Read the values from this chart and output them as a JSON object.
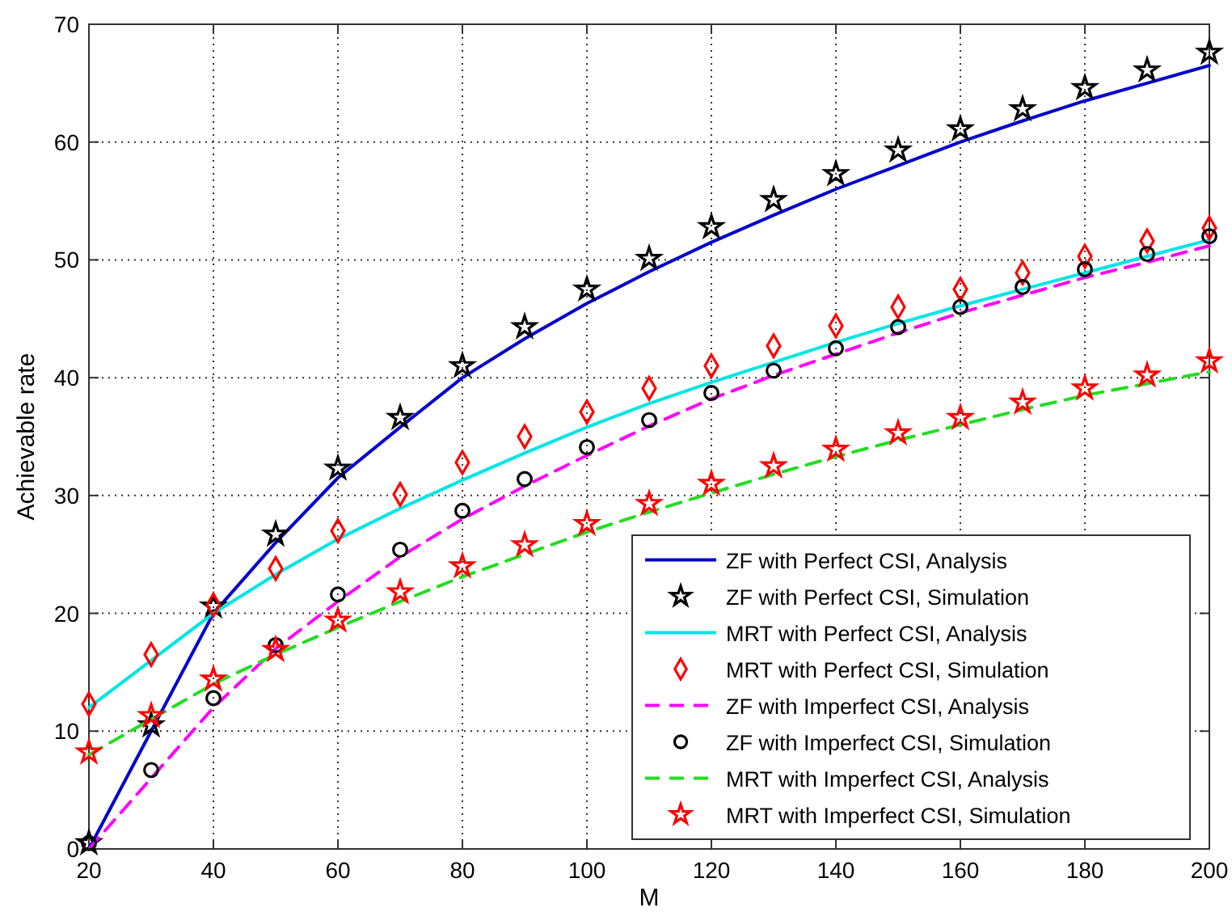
{
  "chart_data": {
    "type": "line",
    "xlabel": "M",
    "ylabel": "Achievable rate",
    "x": [
      20,
      30,
      40,
      50,
      60,
      70,
      80,
      90,
      100,
      110,
      120,
      130,
      140,
      150,
      160,
      170,
      180,
      190,
      200
    ],
    "xlim": [
      20,
      200
    ],
    "xticks": [
      20,
      40,
      60,
      80,
      100,
      120,
      140,
      160,
      180,
      200
    ],
    "ylim": [
      0,
      70
    ],
    "yticks": [
      0,
      10,
      20,
      30,
      40,
      50,
      60,
      70
    ],
    "grid": true,
    "legend": "bottom right",
    "series": [
      {
        "name": "ZF with Perfect CSI, Analysis",
        "color": "#0000cc",
        "line_style": "solid",
        "marker": "none",
        "values": [
          0,
          10,
          20,
          26,
          31.5,
          35.8,
          40,
          43.3,
          46.3,
          49,
          51.5,
          53.8,
          56,
          58,
          60,
          61.8,
          63.5,
          65,
          66.5
        ]
      },
      {
        "name": "ZF with Perfect CSI, Simulation",
        "type": "scatter",
        "color": "#000000",
        "marker": "star",
        "values": [
          0.5,
          10.5,
          20.6,
          26.7,
          32.3,
          36.6,
          41,
          44.3,
          47.5,
          50.1,
          52.8,
          55.1,
          57.3,
          59.3,
          61.1,
          62.8,
          64.6,
          66.1,
          67.6
        ]
      },
      {
        "name": "MRT with Perfect CSI, Analysis",
        "color": "#00e5e5",
        "line_style": "solid",
        "marker": "none",
        "values": [
          12,
          16,
          20,
          23.3,
          26.3,
          28.9,
          31.3,
          33.6,
          35.8,
          37.8,
          39.6,
          41.3,
          43,
          44.6,
          46.1,
          47.5,
          48.9,
          50.3,
          51.7
        ]
      },
      {
        "name": "MRT with Perfect CSI, Simulation",
        "type": "scatter",
        "color": "#ff0000",
        "marker": "diamond",
        "values": [
          12.3,
          16.5,
          20.7,
          23.8,
          27,
          30.1,
          32.8,
          35,
          37.1,
          39.1,
          41,
          42.7,
          44.4,
          46,
          47.5,
          48.9,
          50.3,
          51.6,
          52.7
        ]
      },
      {
        "name": "ZF with Imperfect CSI, Analysis",
        "color": "#ff00ff",
        "line_style": "dashed",
        "marker": "none",
        "values": [
          0,
          6,
          12,
          17,
          21,
          24.8,
          28,
          30.8,
          33.4,
          35.9,
          38.2,
          40.2,
          42,
          43.8,
          45.5,
          47,
          48.5,
          49.8,
          51.2
        ]
      },
      {
        "name": "ZF with Imperfect CSI, Simulation",
        "type": "scatter",
        "color": "#000000",
        "marker": "circle",
        "values": [
          0.5,
          6.7,
          12.8,
          17.3,
          21.6,
          25.4,
          28.7,
          31.4,
          34.1,
          36.4,
          38.7,
          40.6,
          42.5,
          44.3,
          46,
          47.7,
          49.2,
          50.5,
          52
        ]
      },
      {
        "name": "MRT with Imperfect CSI, Analysis",
        "color": "#22dd22",
        "line_style": "dashed",
        "marker": "none",
        "values": [
          8,
          11,
          14,
          16.5,
          18.8,
          21,
          23.1,
          25,
          26.9,
          28.6,
          30.2,
          31.8,
          33.3,
          34.7,
          36,
          37.3,
          38.5,
          39.5,
          40.5
        ]
      },
      {
        "name": "MRT with Imperfect CSI, Simulation",
        "type": "scatter",
        "color": "#ff0000",
        "marker": "star",
        "values": [
          8.2,
          11.3,
          14.4,
          16.9,
          19.4,
          21.8,
          24,
          25.8,
          27.6,
          29.3,
          31,
          32.5,
          33.9,
          35.3,
          36.6,
          37.9,
          39.1,
          40.2,
          41.4
        ]
      }
    ]
  }
}
